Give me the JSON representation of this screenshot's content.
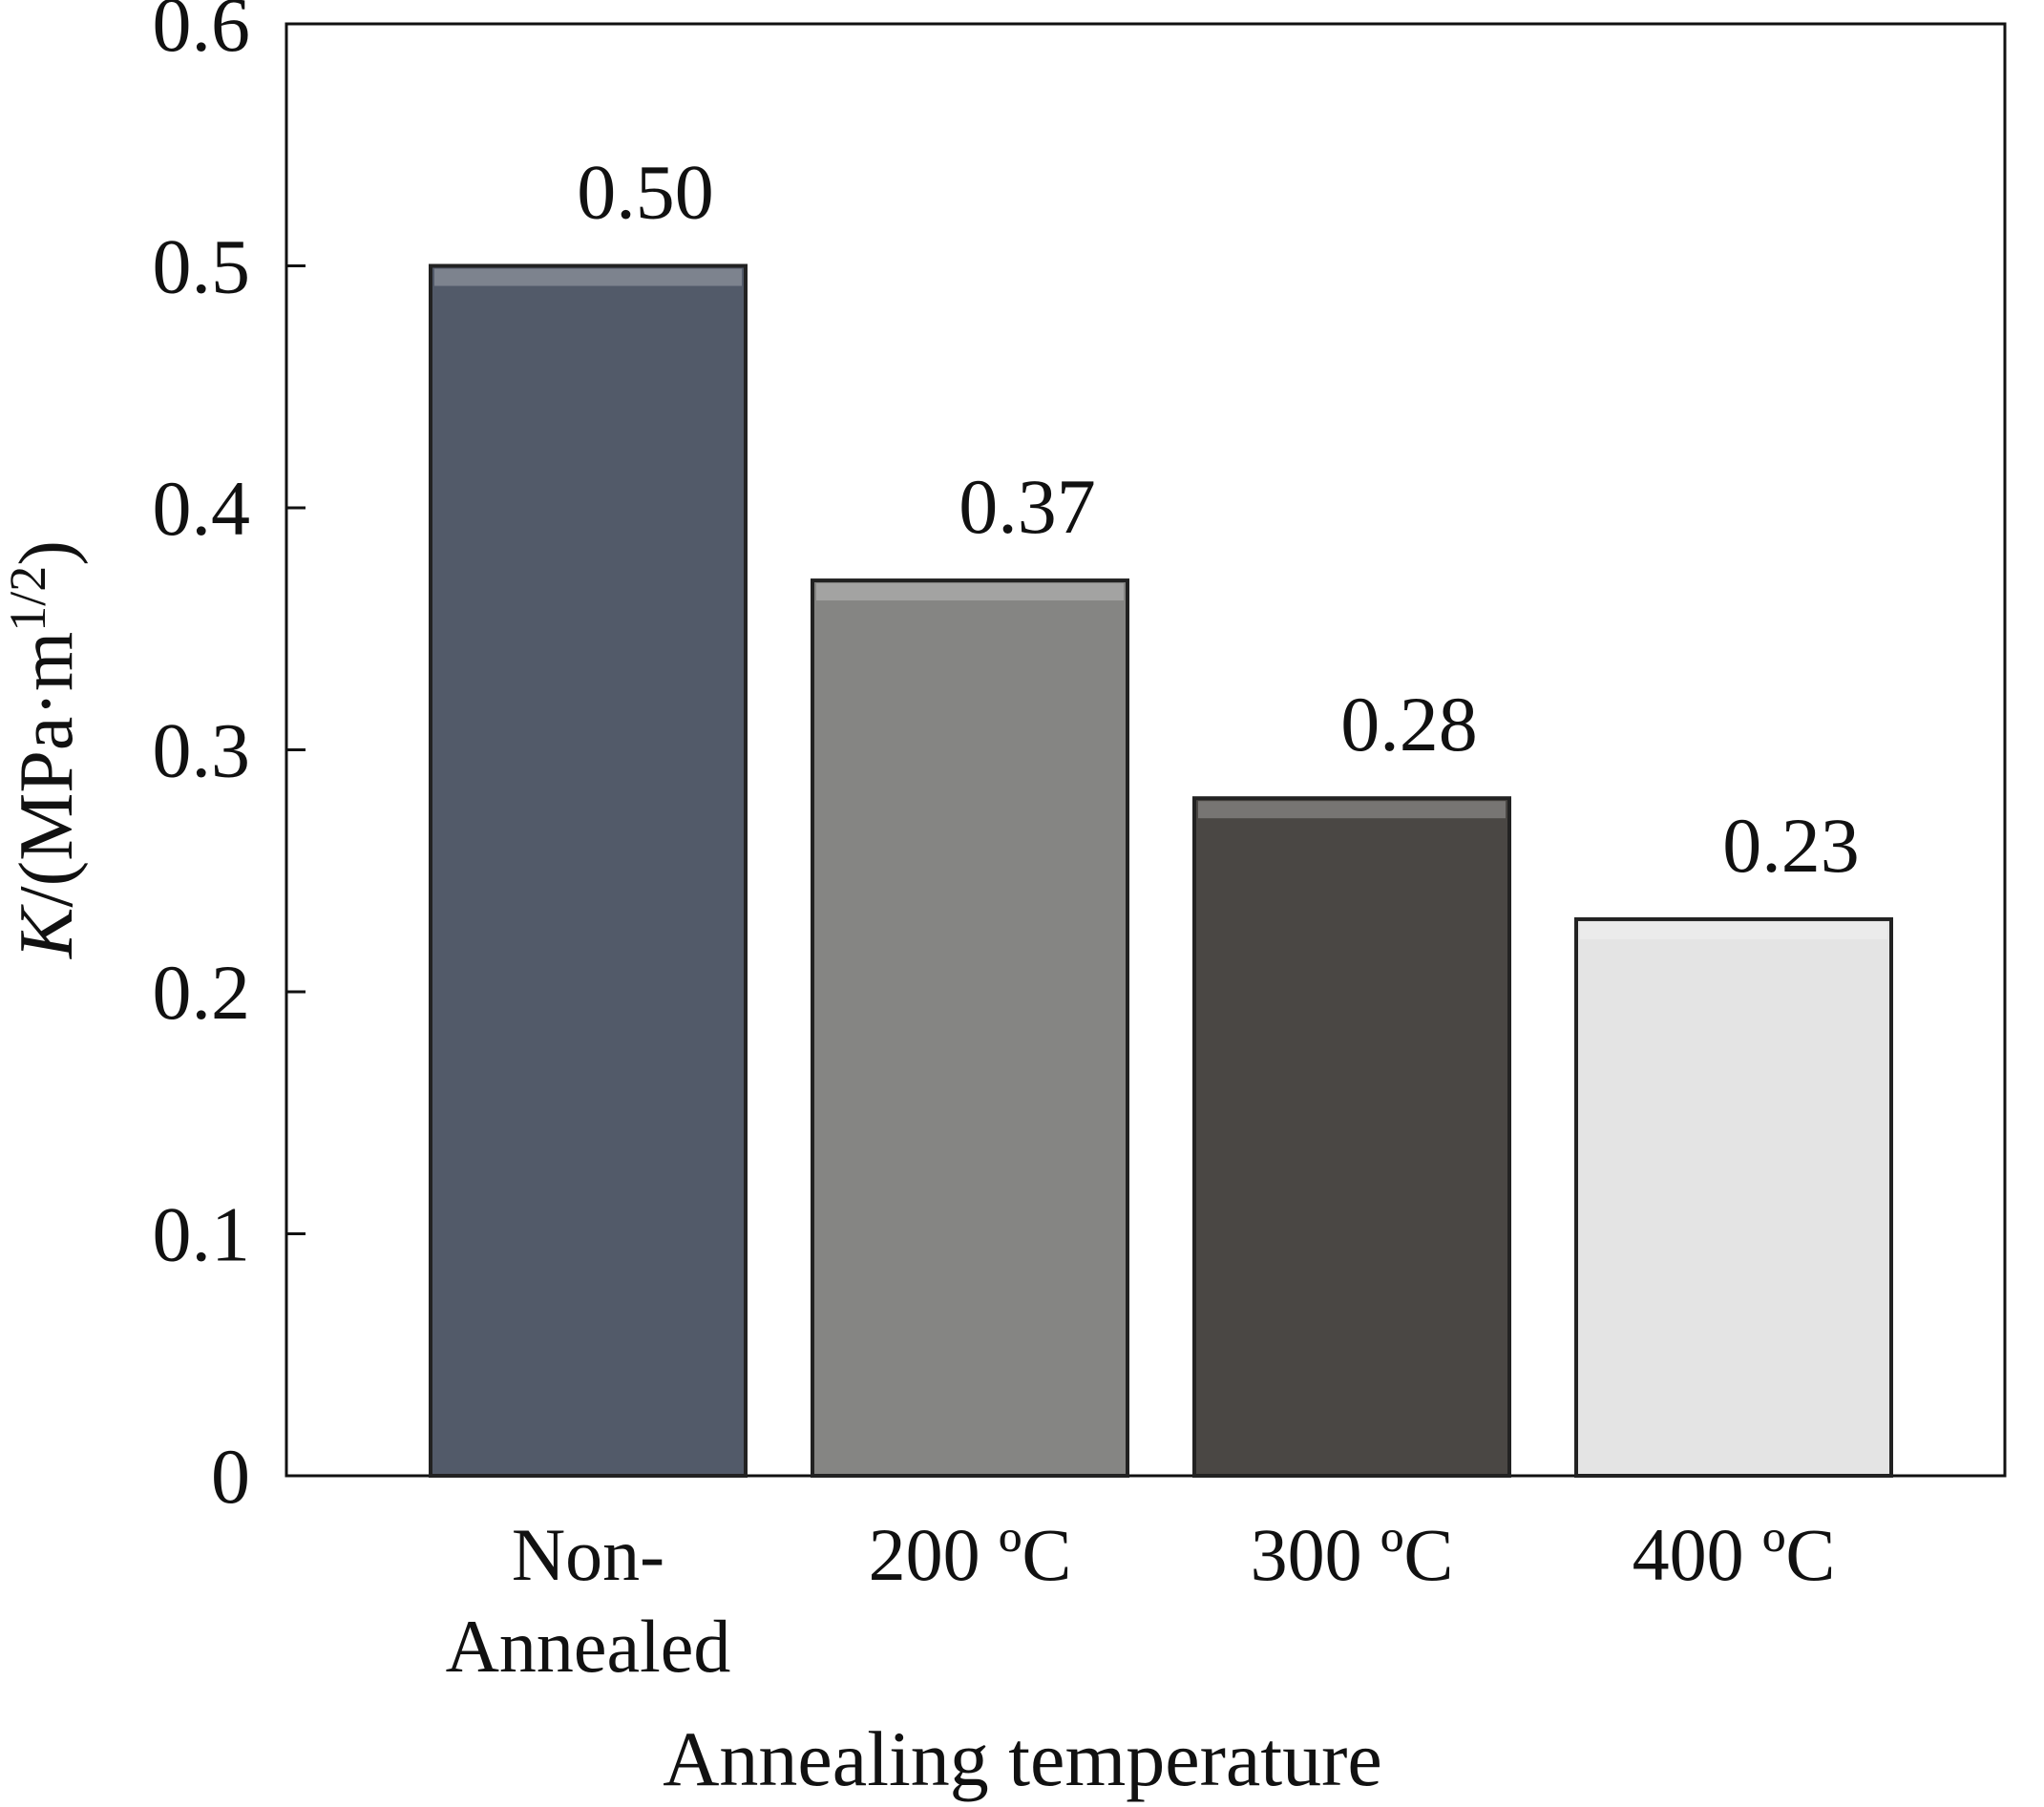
{
  "chart_data": {
    "type": "bar",
    "xlabel": "Annealing temperature",
    "ylabel": [
      "K",
      "/(MPa·m",
      "1/2",
      ")"
    ],
    "categories": [
      [
        "Non-",
        "Annealed"
      ],
      "200 ºC",
      "300 ºC",
      "400 ºC"
    ],
    "values": [
      0.5,
      0.37,
      0.28,
      0.23
    ],
    "value_labels": [
      "0.50",
      "0.37",
      "0.28",
      "0.23"
    ],
    "colors": [
      "#525a69",
      "#858583",
      "#4a4744",
      "#e4e4e4"
    ],
    "ylim": [
      0,
      0.6
    ],
    "yticks": [
      0,
      0.1,
      0.2,
      0.3,
      0.4,
      0.5,
      0.6
    ],
    "grid": false
  }
}
